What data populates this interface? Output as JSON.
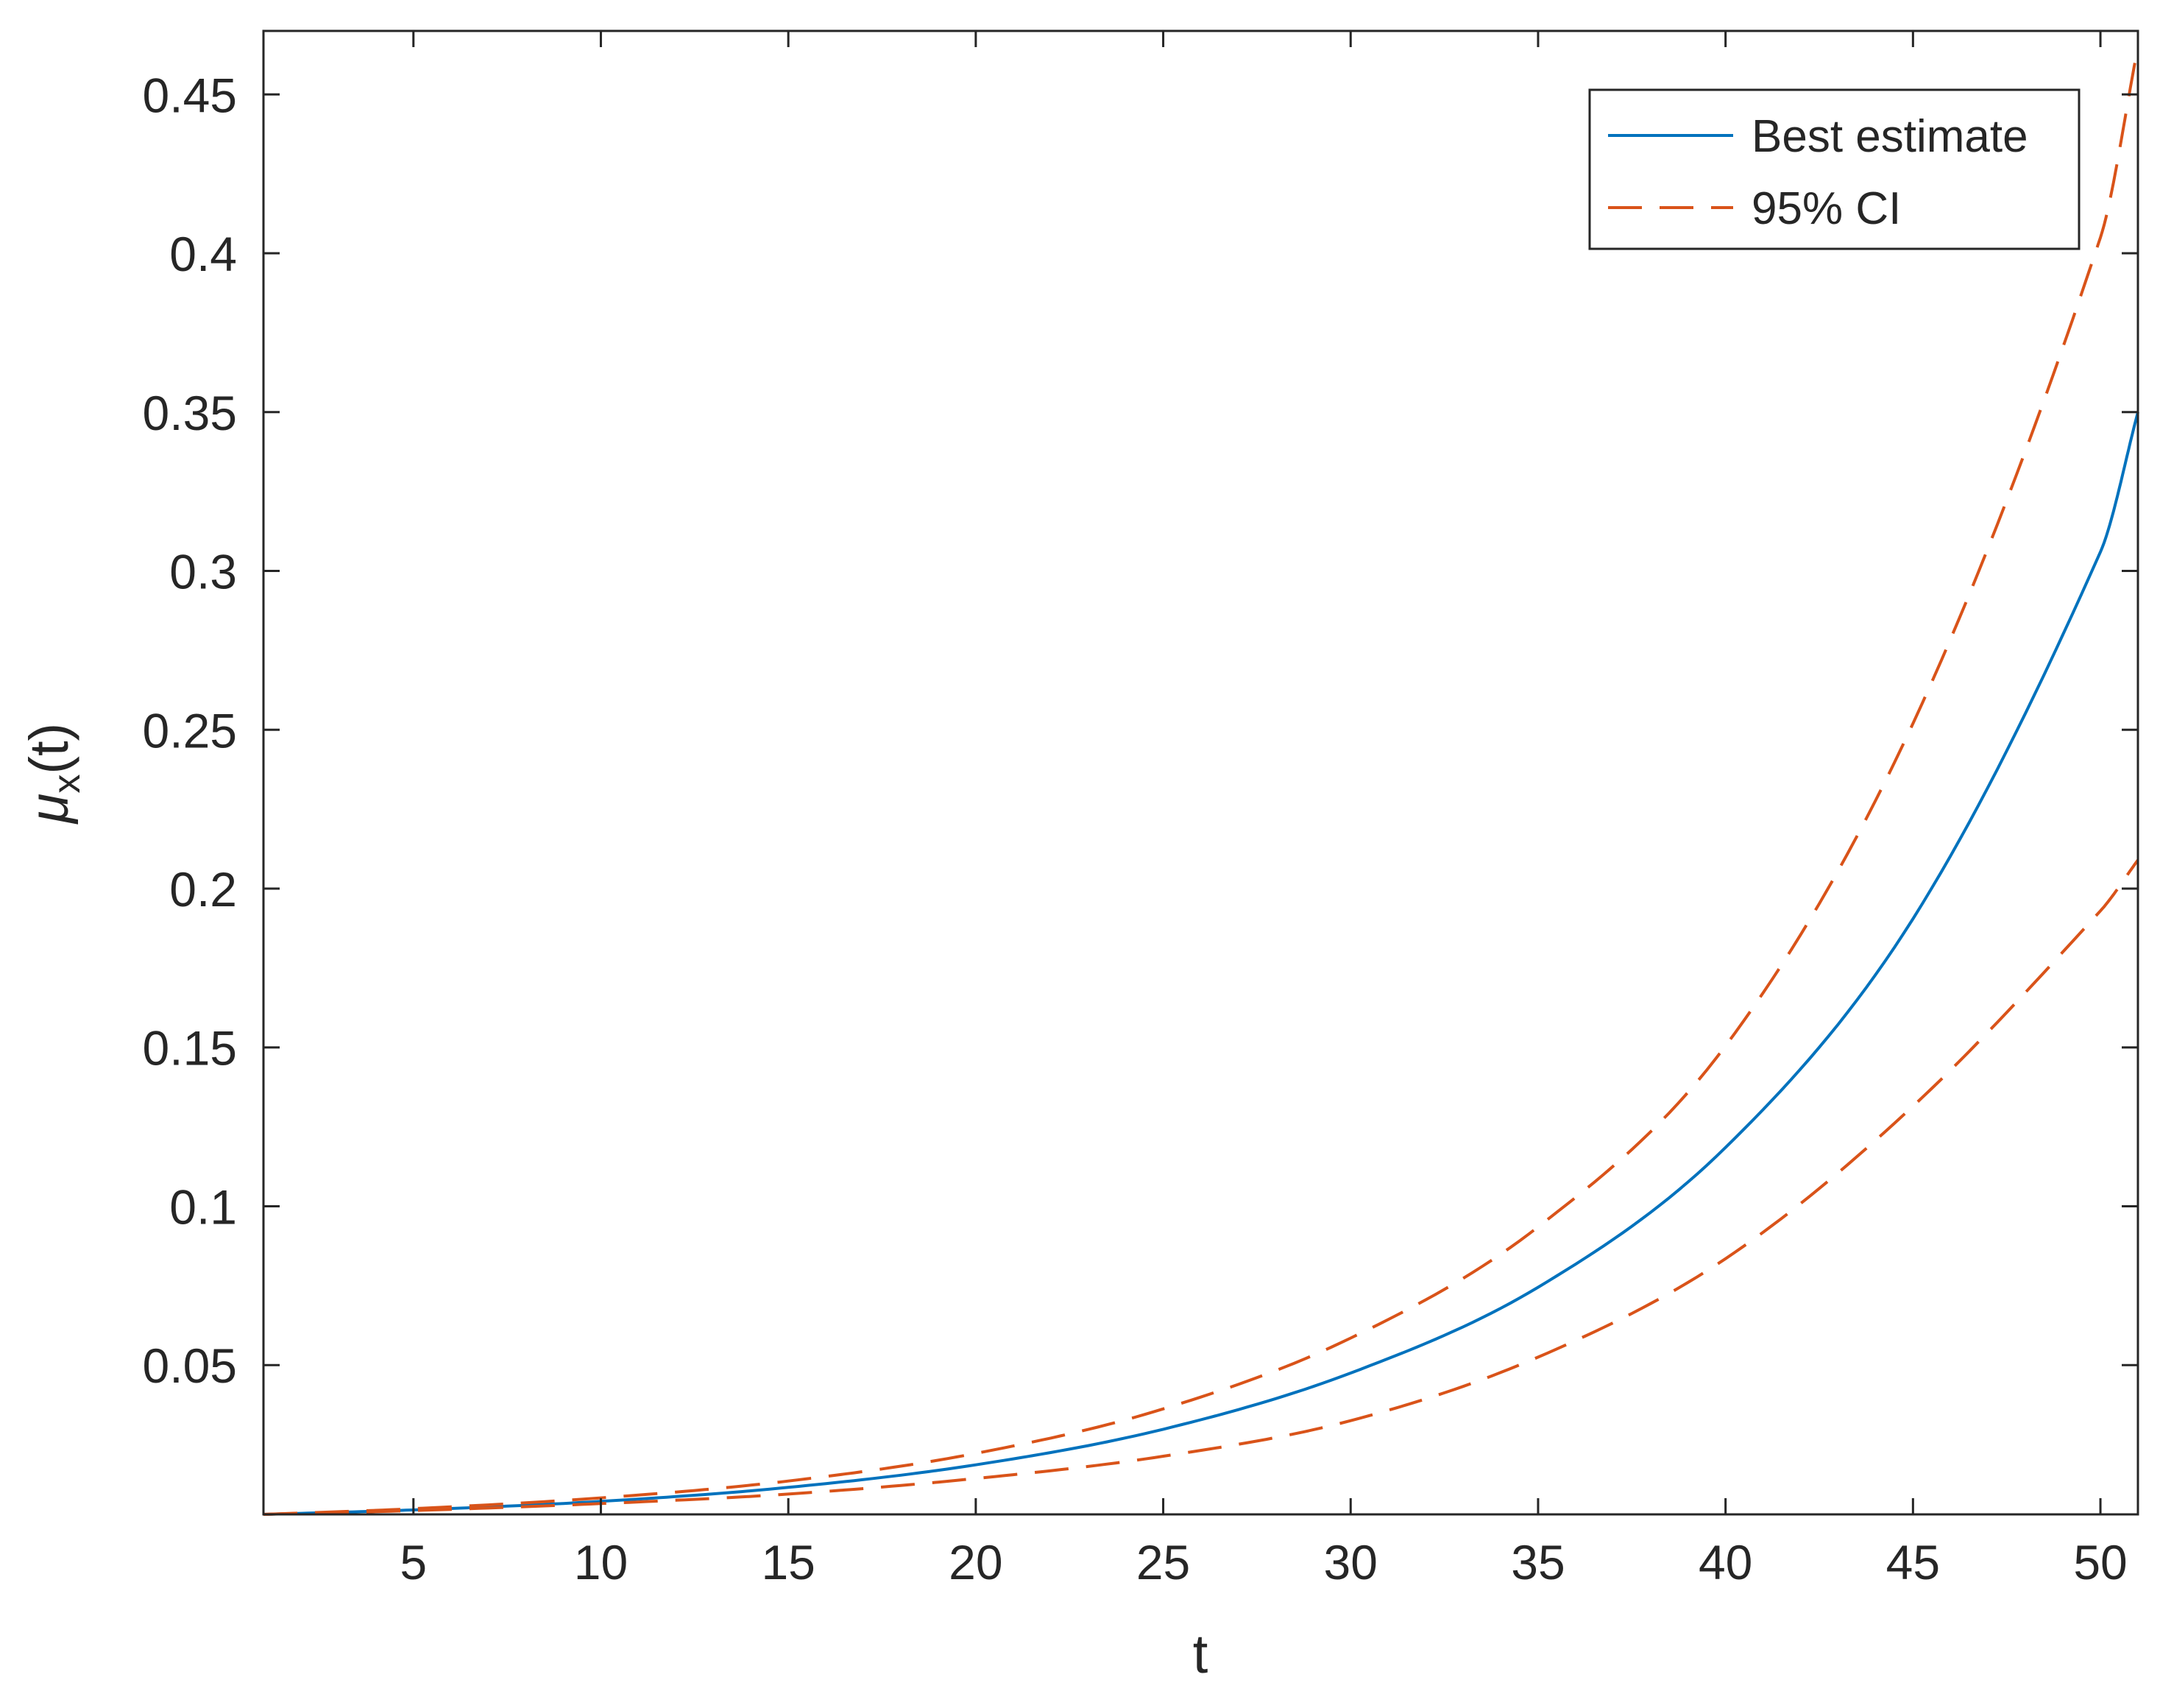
{
  "chart_data": {
    "type": "line",
    "title": "",
    "xlabel": "t",
    "ylabel": "μ_x(t)",
    "ylabel_main": "μ",
    "ylabel_sub": "x",
    "ylabel_suffix": "(t)",
    "xlim": [
      1,
      51
    ],
    "ylim": [
      0.003,
      0.47
    ],
    "xticks": [
      5,
      10,
      15,
      20,
      25,
      30,
      35,
      40,
      45,
      50
    ],
    "xtick_labels": [
      "5",
      "10",
      "15",
      "20",
      "25",
      "30",
      "35",
      "40",
      "45",
      "50"
    ],
    "yticks": [
      0.05,
      0.1,
      0.15,
      0.2,
      0.25,
      0.3,
      0.35,
      0.4,
      0.45
    ],
    "ytick_labels": [
      "0.05",
      "0.1",
      "0.15",
      "0.2",
      "0.25",
      "0.3",
      "0.35",
      "0.4",
      "0.45"
    ],
    "grid": false,
    "legend_position": "top-right",
    "x": [
      1,
      5,
      10,
      15,
      20,
      25,
      30,
      35,
      40,
      45,
      50,
      51
    ],
    "series": [
      {
        "name": "Best estimate",
        "color": "#0072BD",
        "style": "solid",
        "values": [
          0.003,
          0.0044,
          0.0071,
          0.0115,
          0.0186,
          0.0298,
          0.0475,
          0.0745,
          0.1185,
          0.1905,
          0.306,
          0.35
        ]
      },
      {
        "name": "95% CI",
        "color": "#D95319",
        "style": "dashed",
        "values": [
          0.003,
          0.0048,
          0.0082,
          0.0135,
          0.0222,
          0.0362,
          0.0585,
          0.0935,
          0.1505,
          0.252,
          0.405,
          0.465
        ]
      },
      {
        "name": "",
        "color": "#D95319",
        "style": "dashed",
        "values": [
          0.003,
          0.0042,
          0.0064,
          0.0094,
          0.0143,
          0.0213,
          0.0325,
          0.0525,
          0.0835,
          0.1315,
          0.193,
          0.209
        ]
      }
    ]
  }
}
